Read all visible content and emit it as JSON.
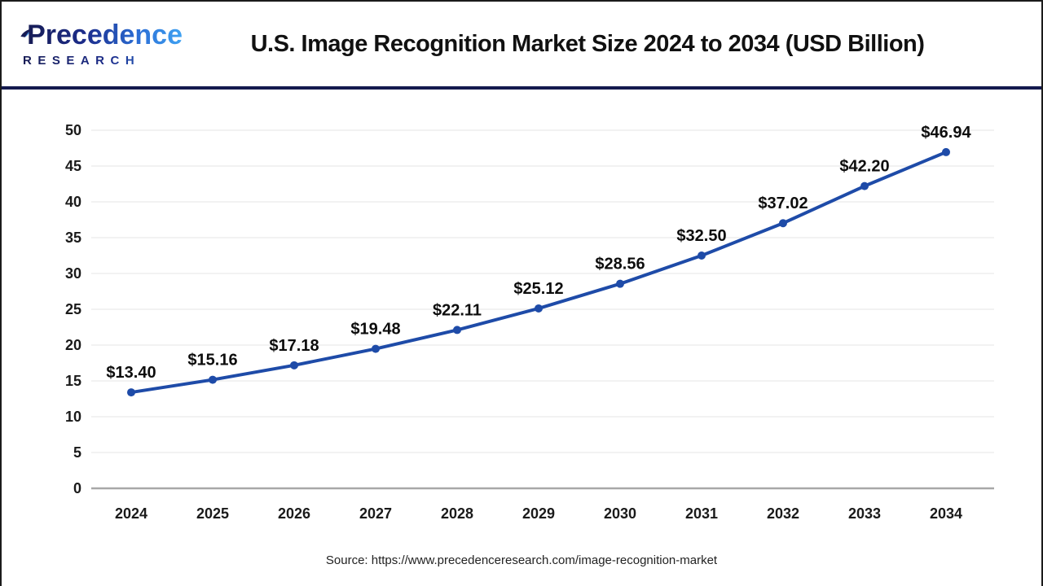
{
  "header": {
    "logo": {
      "line1": "Precedence",
      "line2": "RESEARCH"
    },
    "title": "U.S. Image Recognition Market Size 2024 to 2034 (USD Billion)"
  },
  "chart_data": {
    "type": "line",
    "title": "U.S. Image Recognition Market Size 2024 to 2034 (USD Billion)",
    "categories": [
      "2024",
      "2025",
      "2026",
      "2027",
      "2028",
      "2029",
      "2030",
      "2031",
      "2032",
      "2033",
      "2034"
    ],
    "values": [
      13.4,
      15.16,
      17.18,
      19.48,
      22.11,
      25.12,
      28.56,
      32.5,
      37.02,
      42.2,
      46.94
    ],
    "labels": [
      "$13.40",
      "$15.16",
      "$17.18",
      "$19.48",
      "$22.11",
      "$25.12",
      "$28.56",
      "$32.50",
      "$37.02",
      "$42.20",
      "$46.94"
    ],
    "y_ticks": [
      0,
      5,
      10,
      15,
      20,
      25,
      30,
      35,
      40,
      45,
      50
    ],
    "ylim": [
      0,
      50
    ],
    "xlabel": "",
    "ylabel": "",
    "grid": true,
    "legend": false,
    "colors": {
      "line": "#1e4ba8",
      "marker": "#1e4ba8",
      "grid": "#eeeeee",
      "zero_axis": "#a8a8a8",
      "tick_label": "#1a1a1a",
      "data_label": "#0d0d0d",
      "divider": "#141a4e",
      "logo_dark": "#171c55",
      "logo_blue": "#3fa2f2"
    }
  },
  "footer": {
    "source": "Source: https://www.precedenceresearch.com/image-recognition-market"
  }
}
